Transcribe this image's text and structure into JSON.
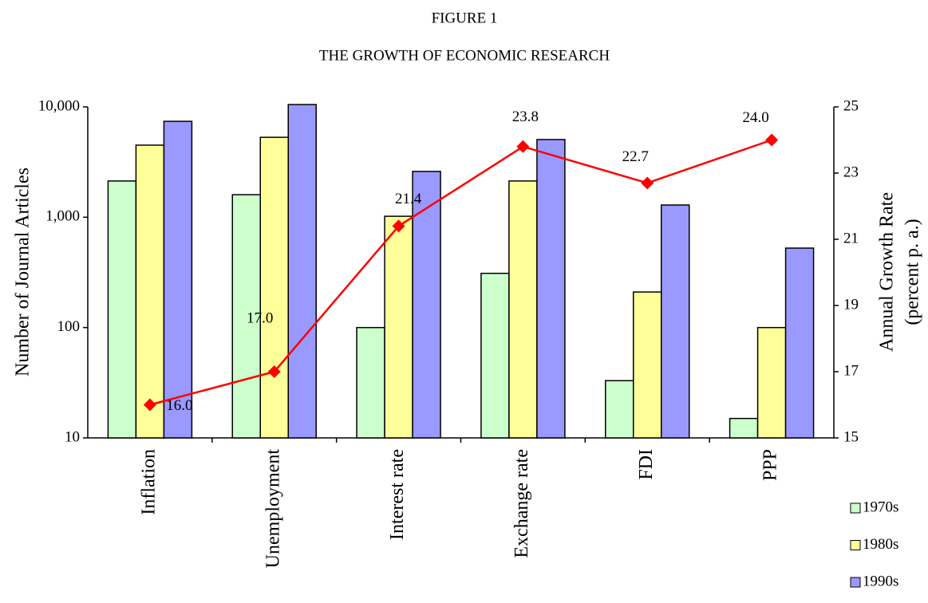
{
  "chart_data": {
    "type": "bar_line",
    "title": "FIGURE  1",
    "subtitle": "THE GROWTH OF ECONOMIC RESEARCH",
    "y_label": "Number of Journal Articles",
    "y2_label": [
      "Annual Growth Rate",
      "(percent p. a.)"
    ],
    "categories": [
      "Inflation",
      "Unemployment",
      "Interest rate",
      "Exchange rate",
      "FDI",
      "PPP"
    ],
    "series": [
      {
        "name": "1970s",
        "color": "#ccffcc",
        "values": [
          2130,
          1600,
          100,
          310,
          33,
          15
        ]
      },
      {
        "name": "1980s",
        "color": "#ffff99",
        "values": [
          4500,
          5300,
          1020,
          2130,
          210,
          100
        ]
      },
      {
        "name": "1990s",
        "color": "#9999ff",
        "values": [
          7400,
          10500,
          2600,
          5060,
          1290,
          525
        ]
      },
      {
        "type": "line",
        "axis": "y2",
        "color": "#ff0000",
        "values": [
          16,
          17,
          21.4,
          23.8,
          22.7,
          24
        ],
        "value_labels": [
          "16.0",
          "17.0",
          "21.4",
          "23.8",
          "22.7",
          "24.0"
        ]
      }
    ],
    "ylim": [
      10,
      10000
    ],
    "ylog": true,
    "yticks": [
      10,
      100,
      {
        "value": 1000,
        "label": "1,000"
      },
      {
        "value": 10000,
        "label": "10,000"
      }
    ],
    "y2lim": [
      15,
      25
    ],
    "y2ticks": [
      15,
      17,
      19,
      21,
      23,
      25
    ]
  }
}
